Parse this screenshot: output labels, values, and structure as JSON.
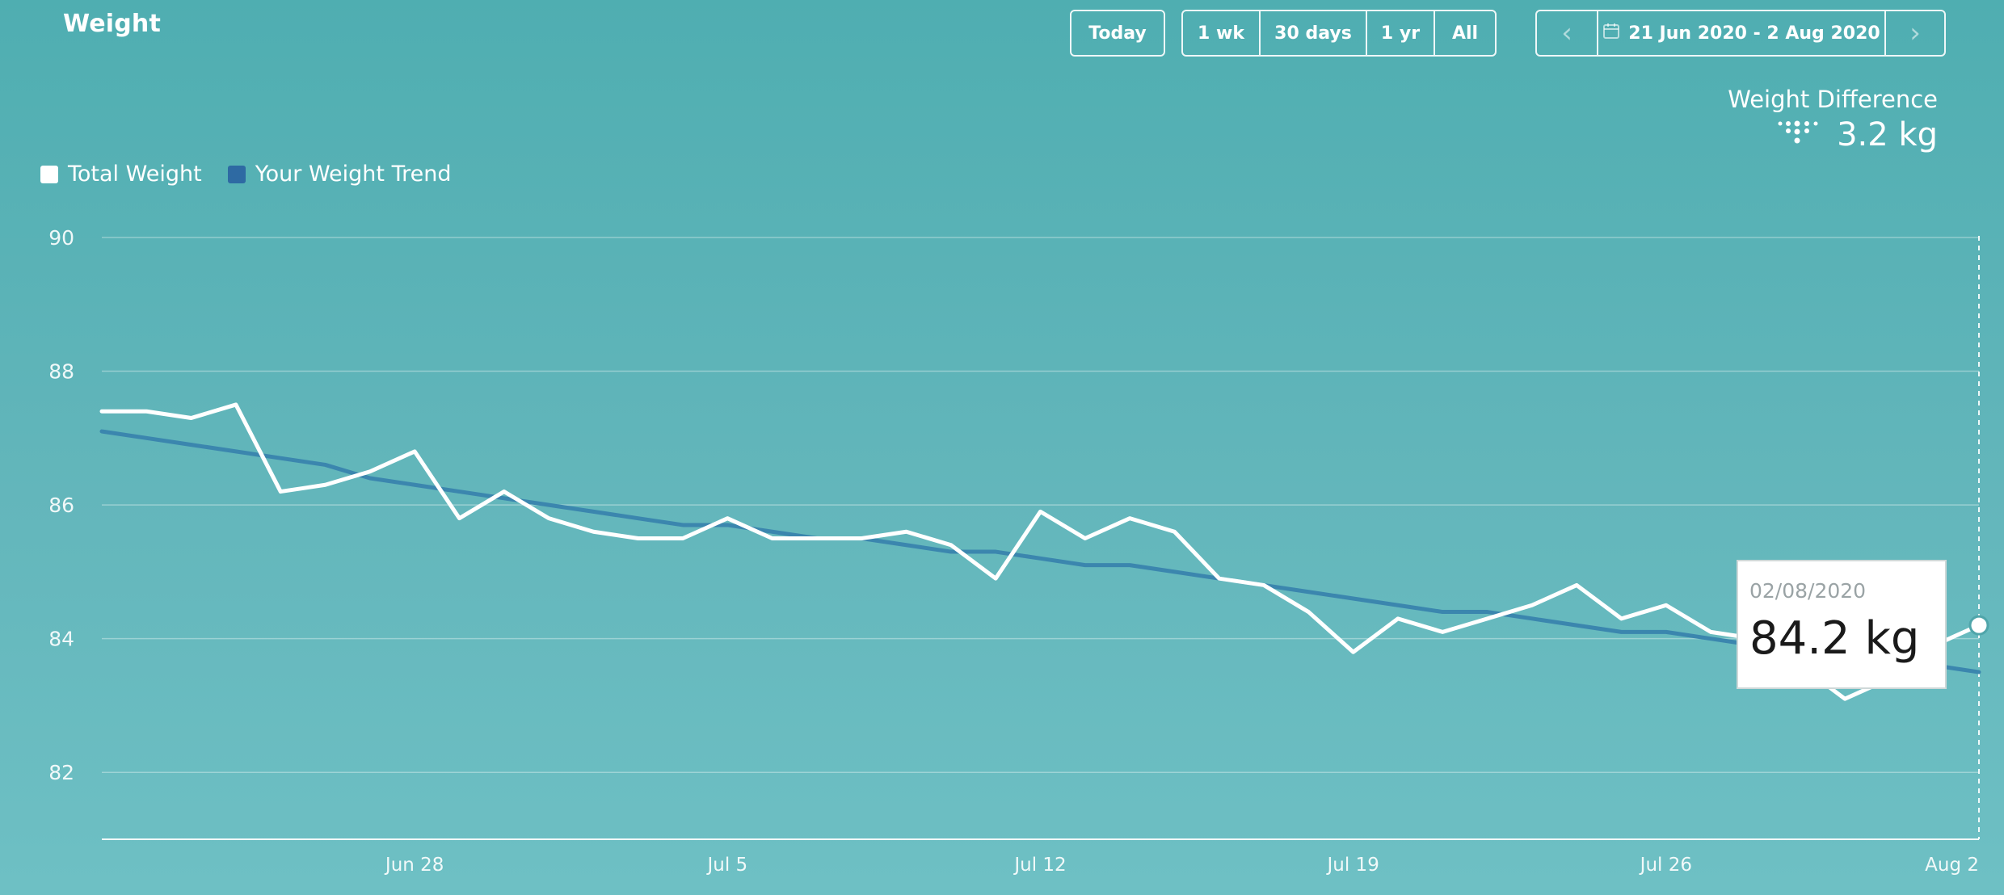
{
  "page": {
    "title": "Weight"
  },
  "toolbar": {
    "today_label": "Today",
    "ranges": [
      "1 wk",
      "30 days",
      "1 yr",
      "All"
    ],
    "prev_label": "‹",
    "next_label": "›",
    "date_range": "21 Jun 2020 - 2 Aug 2020"
  },
  "summary": {
    "label": "Weight Difference",
    "value": "3.2 kg"
  },
  "legend": [
    {
      "label": "Total Weight",
      "color": "#ffffff"
    },
    {
      "label": "Your Weight Trend",
      "color": "#2e6aa3"
    }
  ],
  "tooltip": {
    "date": "02/08/2020",
    "value": "84.2 kg"
  },
  "colors": {
    "total_line": "#ffffff",
    "trend_line": "#3b86ae",
    "grid": "rgba(255,255,255,0.35)"
  },
  "chart_data": {
    "type": "line",
    "x": [
      "Jun 21",
      "Jun 22",
      "Jun 23",
      "Jun 24",
      "Jun 25",
      "Jun 26",
      "Jun 27",
      "Jun 28",
      "Jun 29",
      "Jun 30",
      "Jul 1",
      "Jul 2",
      "Jul 3",
      "Jul 4",
      "Jul 5",
      "Jul 6",
      "Jul 7",
      "Jul 8",
      "Jul 9",
      "Jul 10",
      "Jul 11",
      "Jul 12",
      "Jul 13",
      "Jul 14",
      "Jul 15",
      "Jul 16",
      "Jul 17",
      "Jul 18",
      "Jul 19",
      "Jul 20",
      "Jul 21",
      "Jul 22",
      "Jul 23",
      "Jul 24",
      "Jul 25",
      "Jul 26",
      "Jul 27",
      "Jul 28",
      "Jul 29",
      "Jul 30",
      "Jul 31",
      "Aug 1",
      "Aug 2"
    ],
    "x_ticks": [
      "Jun 28",
      "Jul 5",
      "Jul 12",
      "Jul 19",
      "Jul 26",
      "Aug 2"
    ],
    "series": [
      {
        "name": "Total Weight",
        "values": [
          87.4,
          87.4,
          87.3,
          87.5,
          86.2,
          86.3,
          86.5,
          86.8,
          85.8,
          86.2,
          85.8,
          85.6,
          85.5,
          85.5,
          85.8,
          85.5,
          85.5,
          85.5,
          85.6,
          85.4,
          84.9,
          85.9,
          85.5,
          85.8,
          85.6,
          84.9,
          84.8,
          84.4,
          83.8,
          84.3,
          84.1,
          84.3,
          84.5,
          84.8,
          84.3,
          84.5,
          84.1,
          84.0,
          83.6,
          83.1,
          83.4,
          83.9,
          84.2
        ]
      },
      {
        "name": "Your Weight Trend",
        "values": [
          87.1,
          87.0,
          86.9,
          86.8,
          86.7,
          86.6,
          86.4,
          86.3,
          86.2,
          86.1,
          86.0,
          85.9,
          85.8,
          85.7,
          85.7,
          85.6,
          85.5,
          85.5,
          85.4,
          85.3,
          85.3,
          85.2,
          85.1,
          85.1,
          85.0,
          84.9,
          84.8,
          84.7,
          84.6,
          84.5,
          84.4,
          84.4,
          84.3,
          84.2,
          84.1,
          84.1,
          84.0,
          83.9,
          83.9,
          83.8,
          83.7,
          83.6,
          83.5
        ]
      }
    ],
    "y_ticks": [
      82,
      84,
      86,
      88,
      90
    ],
    "ylim": [
      81,
      90
    ],
    "grid": true,
    "legend_position": "top-left"
  }
}
